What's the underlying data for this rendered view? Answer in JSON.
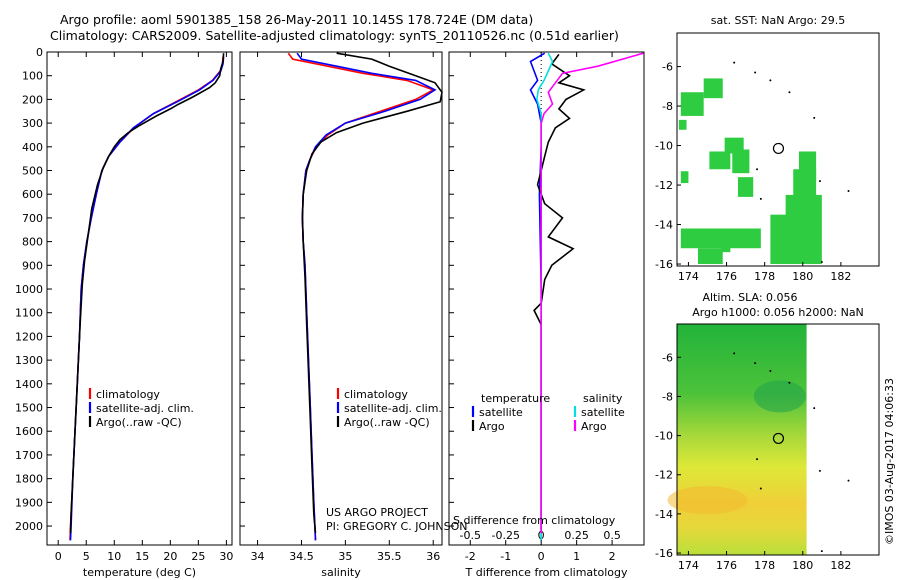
{
  "titles": {
    "line1": "Argo profile: aoml 5901385_158 26-May-2011 10.145S 178.724E (DM data)",
    "line2": "Climatology: CARS2009. Satellite-adjusted climatology: synTS_20110526.nc (0.51d earlier)"
  },
  "side_label": "©IMOS 03-Aug-2017 04:06:33",
  "colors": {
    "clim": "#ff0000",
    "sat": "#0000ff",
    "argo": "#000000",
    "sat_s": "#00e0e0",
    "argo_s": "#ff00ff",
    "land": "#2ecc40"
  },
  "chart_data": [
    {
      "type": "line",
      "panel": "temperature",
      "xlabel": "temperature (deg C)",
      "xlim": [
        -2,
        31
      ],
      "xticks": [
        0,
        5,
        10,
        15,
        20,
        25,
        30
      ],
      "ylim": [
        2080,
        0
      ],
      "yticks": [
        0,
        100,
        200,
        300,
        400,
        500,
        600,
        700,
        800,
        900,
        1000,
        1100,
        1200,
        1300,
        1400,
        1500,
        1600,
        1700,
        1800,
        1900,
        2000
      ],
      "legend": [
        "climatology",
        "satellite-adj. clim.",
        "Argo(..raw -QC)"
      ],
      "series": [
        {
          "name": "climatology",
          "color": "clim",
          "points": [
            [
              29.4,
              20
            ],
            [
              29.3,
              50
            ],
            [
              28.9,
              80
            ],
            [
              27.5,
              120
            ],
            [
              25.0,
              160
            ],
            [
              21.0,
              210
            ],
            [
              17.0,
              260
            ],
            [
              13.5,
              320
            ],
            [
              11.0,
              380
            ],
            [
              9.0,
              440
            ],
            [
              7.8,
              500
            ],
            [
              6.8,
              600
            ],
            [
              5.9,
              700
            ],
            [
              5.1,
              800
            ],
            [
              4.5,
              900
            ],
            [
              4.1,
              1000
            ],
            [
              3.8,
              1200
            ],
            [
              3.4,
              1400
            ],
            [
              3.0,
              1600
            ],
            [
              2.6,
              1800
            ],
            [
              2.2,
              2000
            ],
            [
              2.1,
              2060
            ]
          ]
        },
        {
          "name": "satellite-adj. clim.",
          "color": "sat",
          "points": [
            [
              29.5,
              20
            ],
            [
              29.4,
              50
            ],
            [
              29.0,
              80
            ],
            [
              27.6,
              120
            ],
            [
              25.2,
              160
            ],
            [
              21.2,
              210
            ],
            [
              17.0,
              260
            ],
            [
              13.4,
              320
            ],
            [
              11.0,
              380
            ],
            [
              9.0,
              440
            ],
            [
              7.8,
              500
            ],
            [
              6.8,
              600
            ],
            [
              5.9,
              700
            ],
            [
              5.1,
              800
            ],
            [
              4.5,
              900
            ],
            [
              4.1,
              1000
            ],
            [
              3.8,
              1200
            ],
            [
              3.4,
              1400
            ],
            [
              3.0,
              1600
            ],
            [
              2.6,
              1800
            ],
            [
              2.3,
              2000
            ],
            [
              2.2,
              2060
            ]
          ]
        },
        {
          "name": "Argo(..raw -QC)",
          "color": "argo",
          "points": [
            [
              29.5,
              5
            ],
            [
              29.4,
              40
            ],
            [
              29.0,
              70
            ],
            [
              28.8,
              100
            ],
            [
              28.0,
              130
            ],
            [
              27.0,
              150
            ],
            [
              24.0,
              190
            ],
            [
              21.5,
              220
            ],
            [
              20.0,
              240
            ],
            [
              17.5,
              270
            ],
            [
              14.5,
              310
            ],
            [
              12.5,
              340
            ],
            [
              11.0,
              370
            ],
            [
              10.0,
              400
            ],
            [
              9.0,
              440
            ],
            [
              8.0,
              490
            ],
            [
              7.0,
              560
            ],
            [
              6.0,
              660
            ],
            [
              5.3,
              780
            ],
            [
              4.7,
              880
            ],
            [
              4.3,
              980
            ],
            [
              3.9,
              1150
            ],
            [
              3.5,
              1350
            ],
            [
              3.1,
              1550
            ],
            [
              2.7,
              1750
            ],
            [
              2.3,
              1950
            ],
            [
              2.2,
              2030
            ]
          ]
        }
      ]
    },
    {
      "type": "line",
      "panel": "salinity",
      "xlabel": "salinity",
      "xlim": [
        33.8,
        36.1
      ],
      "xticks": [
        34,
        34.5,
        35,
        35.5,
        36
      ],
      "ylim": [
        2080,
        0
      ],
      "legend": [
        "climatology",
        "satellite-adj. clim.",
        "Argo(..raw -QC)"
      ],
      "annotation": [
        "US ARGO PROJECT",
        "PI: GREGORY C. JOHNSON"
      ],
      "series": [
        {
          "name": "climatology",
          "color": "clim",
          "points": [
            [
              34.35,
              5
            ],
            [
              34.4,
              30
            ],
            [
              34.8,
              60
            ],
            [
              35.2,
              90
            ],
            [
              35.7,
              120
            ],
            [
              36.0,
              160
            ],
            [
              35.8,
              200
            ],
            [
              35.4,
              250
            ],
            [
              35.0,
              300
            ],
            [
              34.8,
              350
            ],
            [
              34.67,
              400
            ],
            [
              34.6,
              450
            ],
            [
              34.55,
              500
            ],
            [
              34.52,
              600
            ],
            [
              34.51,
              700
            ],
            [
              34.52,
              800
            ],
            [
              34.54,
              900
            ],
            [
              34.56,
              1100
            ],
            [
              34.58,
              1300
            ],
            [
              34.6,
              1500
            ],
            [
              34.62,
              1700
            ],
            [
              34.64,
              1900
            ],
            [
              34.66,
              2060
            ]
          ]
        },
        {
          "name": "satellite-adj. clim.",
          "color": "sat",
          "points": [
            [
              34.45,
              5
            ],
            [
              34.5,
              30
            ],
            [
              34.9,
              60
            ],
            [
              35.3,
              90
            ],
            [
              35.8,
              120
            ],
            [
              36.02,
              160
            ],
            [
              35.85,
              200
            ],
            [
              35.45,
              250
            ],
            [
              35.0,
              300
            ],
            [
              34.78,
              350
            ],
            [
              34.66,
              400
            ],
            [
              34.6,
              450
            ],
            [
              34.55,
              500
            ],
            [
              34.52,
              600
            ],
            [
              34.51,
              700
            ],
            [
              34.52,
              800
            ],
            [
              34.54,
              900
            ],
            [
              34.56,
              1100
            ],
            [
              34.58,
              1300
            ],
            [
              34.6,
              1500
            ],
            [
              34.62,
              1700
            ],
            [
              34.64,
              1900
            ],
            [
              34.66,
              2060
            ]
          ]
        },
        {
          "name": "Argo(..raw -QC)",
          "color": "argo",
          "points": [
            [
              34.9,
              5
            ],
            [
              35.3,
              30
            ],
            [
              35.5,
              60
            ],
            [
              35.8,
              100
            ],
            [
              36.02,
              130
            ],
            [
              36.1,
              170
            ],
            [
              36.08,
              210
            ],
            [
              35.7,
              250
            ],
            [
              35.2,
              300
            ],
            [
              34.9,
              340
            ],
            [
              34.72,
              380
            ],
            [
              34.62,
              430
            ],
            [
              34.56,
              500
            ],
            [
              34.52,
              600
            ],
            [
              34.51,
              700
            ],
            [
              34.52,
              800
            ],
            [
              34.54,
              950
            ],
            [
              34.56,
              1150
            ],
            [
              34.58,
              1350
            ],
            [
              34.6,
              1550
            ],
            [
              34.62,
              1750
            ],
            [
              34.64,
              1950
            ],
            [
              34.66,
              2030
            ]
          ]
        }
      ]
    },
    {
      "type": "line",
      "panel": "differences",
      "xlabel_top": "S difference from climatology",
      "xlabel": "T difference from climatology",
      "xlim_T": [
        -2.6,
        2.9
      ],
      "xticks_T": [
        -2,
        -1,
        0,
        1,
        2
      ],
      "xlim_S": [
        -0.65,
        0.725
      ],
      "xticks_S": [
        -0.5,
        -0.25,
        0,
        0.25,
        0.5
      ],
      "xticks_S_labels": [
        "-0.5",
        "-0.25",
        "0",
        "0.25",
        "0.5"
      ],
      "ylim": [
        2080,
        0
      ],
      "legend": [
        {
          "title": "temperature",
          "items": [
            "satellite",
            "Argo"
          ]
        },
        {
          "title": "salinity",
          "items": [
            "satellite",
            "Argo"
          ]
        }
      ],
      "series": [
        {
          "name": "temperature satellite",
          "color": "sat",
          "axis": "T",
          "points": [
            [
              0.1,
              5
            ],
            [
              -0.3,
              40
            ],
            [
              -0.2,
              80
            ],
            [
              -0.1,
              120
            ],
            [
              -0.3,
              160
            ],
            [
              -0.1,
              220
            ],
            [
              0.0,
              300
            ],
            [
              0.0,
              400
            ],
            [
              -0.05,
              600
            ],
            [
              0.0,
              1000
            ],
            [
              0.0,
              1500
            ],
            [
              0.0,
              2060
            ]
          ]
        },
        {
          "name": "temperature Argo",
          "color": "argo",
          "axis": "T",
          "points": [
            [
              0.5,
              10
            ],
            [
              0.3,
              50
            ],
            [
              0.8,
              100
            ],
            [
              0.5,
              130
            ],
            [
              1.2,
              160
            ],
            [
              0.7,
              200
            ],
            [
              0.5,
              240
            ],
            [
              0.8,
              280
            ],
            [
              0.4,
              320
            ],
            [
              0.2,
              380
            ],
            [
              0.1,
              440
            ],
            [
              0.0,
              500
            ],
            [
              -0.1,
              560
            ],
            [
              0.1,
              640
            ],
            [
              0.6,
              700
            ],
            [
              0.2,
              780
            ],
            [
              0.9,
              830
            ],
            [
              0.3,
              900
            ],
            [
              0.1,
              960
            ],
            [
              0.0,
              1060
            ],
            [
              -0.2,
              1090
            ],
            [
              0.0,
              1150
            ],
            [
              0.0,
              1300
            ],
            [
              0.0,
              1600
            ],
            [
              0.0,
              2030
            ]
          ]
        },
        {
          "name": "salinity satellite",
          "color": "sat_s",
          "axis": "S",
          "points": [
            [
              0.05,
              5
            ],
            [
              0.08,
              40
            ],
            [
              0.05,
              80
            ],
            [
              0.02,
              120
            ],
            [
              -0.02,
              160
            ],
            [
              -0.03,
              200
            ],
            [
              0.0,
              260
            ],
            [
              0.0,
              400
            ],
            [
              0.0,
              800
            ],
            [
              0.0,
              1500
            ],
            [
              0.0,
              2060
            ]
          ]
        },
        {
          "name": "salinity Argo",
          "color": "argo_s",
          "axis": "S",
          "points": [
            [
              0.72,
              5
            ],
            [
              0.4,
              60
            ],
            [
              0.15,
              90
            ],
            [
              0.1,
              130
            ],
            [
              0.05,
              170
            ],
            [
              0.08,
              220
            ],
            [
              0.02,
              260
            ],
            [
              0.0,
              300
            ],
            [
              0.0,
              400
            ],
            [
              0.0,
              800
            ],
            [
              0.0,
              1500
            ],
            [
              0.0,
              2030
            ]
          ]
        }
      ]
    },
    {
      "type": "heatmap",
      "panel": "sst_map",
      "title": "sat. SST: NaN Argo: 29.5",
      "xlim": [
        173.4,
        184.0
      ],
      "ylim": [
        -16.1,
        -4.3
      ],
      "xticks": [
        174,
        176,
        178,
        180,
        182
      ],
      "yticks": [
        -6,
        -8,
        -10,
        -12,
        -14,
        -16
      ],
      "argo_position": [
        178.724,
        -10.145
      ],
      "cells": [
        [
          173.6,
          -8.5,
          1.2,
          1.2
        ],
        [
          174.8,
          -7.6,
          1.0,
          1.0
        ],
        [
          173.5,
          -9.2,
          0.4,
          0.5
        ],
        [
          175.9,
          -10.4,
          1.0,
          0.8
        ],
        [
          176.3,
          -11.4,
          0.9,
          1.2
        ],
        [
          176.6,
          -12.6,
          0.8,
          1.0
        ],
        [
          175.1,
          -11.2,
          1.1,
          0.9
        ],
        [
          173.6,
          -11.9,
          0.4,
          0.6
        ],
        [
          173.6,
          -15.2,
          4.2,
          1.0
        ],
        [
          174.5,
          -16.0,
          1.3,
          0.8
        ],
        [
          179.5,
          -13.0,
          1.2,
          1.8
        ],
        [
          179.1,
          -16.0,
          1.9,
          3.5
        ],
        [
          178.3,
          -16.0,
          0.9,
          2.5
        ],
        [
          179.8,
          -11.8,
          0.9,
          1.5
        ],
        [
          175.7,
          -15.4,
          0.5,
          0.5
        ]
      ]
    },
    {
      "type": "heatmap",
      "panel": "sla_map",
      "title1": "Altim. SLA: 0.056",
      "title2": "Argo h1000: 0.056 h2000: NaN",
      "xlim": [
        173.4,
        184.0
      ],
      "ylim": [
        -16.1,
        -4.3
      ],
      "xticks": [
        174,
        176,
        178,
        180,
        182
      ],
      "yticks": [
        -6,
        -8,
        -10,
        -12,
        -14,
        -16
      ],
      "argo_position": [
        178.724,
        -10.145
      ],
      "data_extent": [
        173.4,
        180.2,
        -16.1,
        -4.3
      ]
    }
  ]
}
